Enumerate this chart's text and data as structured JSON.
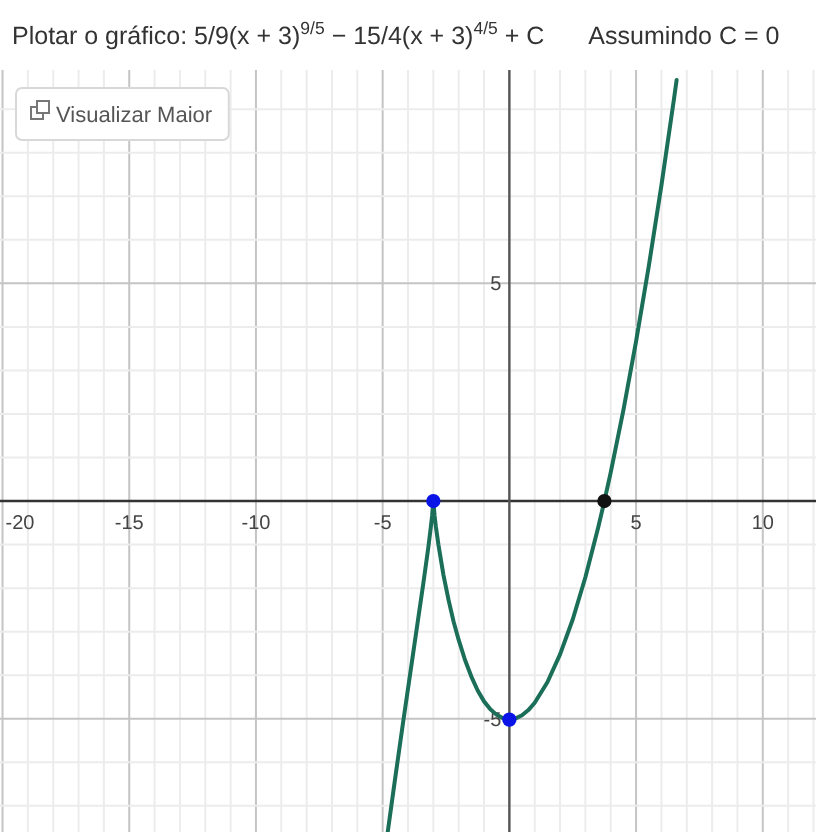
{
  "chart_data": {
    "type": "line",
    "title": "Plotar o gráfico: 5/9(x + 3)$^{9/5}$ − 15/4(x + 3)$^{4/5}$ + C",
    "subtitle": "Assumindo C = 0",
    "annotations": [
      "Visualizar Maior"
    ],
    "xlim": [
      -20.1,
      12.1
    ],
    "ylim": [
      -7.6,
      9.9
    ],
    "xticks": [
      -20,
      {
        "value": -19,
        "label": null
      },
      {
        "value": -18,
        "label": null
      },
      {
        "value": -17,
        "label": null
      },
      {
        "value": -16,
        "label": null
      },
      -15,
      {
        "value": -14,
        "label": null
      },
      {
        "value": -13,
        "label": null
      },
      {
        "value": -12,
        "label": null
      },
      {
        "value": -11,
        "label": null
      },
      -10,
      {
        "value": -9,
        "label": null
      },
      {
        "value": -8,
        "label": null
      },
      {
        "value": -7,
        "label": null
      },
      {
        "value": -6,
        "label": null
      },
      -5,
      {
        "value": -4,
        "label": null
      },
      {
        "value": -3,
        "label": null
      },
      {
        "value": -2,
        "label": null
      },
      {
        "value": -1,
        "label": null
      },
      {
        "value": 0,
        "label": null
      },
      {
        "value": 1,
        "label": null
      },
      {
        "value": 2,
        "label": null
      },
      {
        "value": 3,
        "label": null
      },
      {
        "value": 4,
        "label": null
      },
      5,
      {
        "value": 6,
        "label": null
      },
      {
        "value": 7,
        "label": null
      },
      {
        "value": 8,
        "label": null
      },
      {
        "value": 9,
        "label": null
      },
      10,
      {
        "value": 11,
        "label": null
      },
      {
        "value": 12,
        "label": null
      }
    ],
    "yticks": [
      {
        "value": -7,
        "label": null
      },
      {
        "value": -6,
        "label": null
      },
      -5,
      {
        "value": -4,
        "label": null
      },
      {
        "value": -3,
        "label": null
      },
      {
        "value": -2,
        "label": null
      },
      {
        "value": -1,
        "label": null
      },
      {
        "value": 0,
        "label": null
      },
      {
        "value": 1,
        "label": null
      },
      {
        "value": 2,
        "label": null
      },
      {
        "value": 3,
        "label": null
      },
      {
        "value": 4,
        "label": null
      },
      5,
      {
        "value": 6,
        "label": null
      },
      {
        "value": 7,
        "label": null
      },
      {
        "value": 8,
        "label": null
      },
      {
        "value": 9,
        "label": null
      }
    ],
    "grid": true,
    "series": [
      {
        "color": "#1b6e58",
        "x": [
          -4.8,
          -4.5,
          -4.2,
          -4,
          -3.8,
          -3.6,
          -3.4,
          -3.2,
          -3.1,
          -3.05,
          -3,
          -2.95,
          -2.9,
          -2.8,
          -2.6,
          -2.4,
          -2.2,
          -2,
          -1.75,
          -1.5,
          -1.25,
          -1,
          -0.75,
          -0.5,
          -0.25,
          0,
          0.25,
          0.5,
          0.75,
          1,
          1.5,
          2,
          2.5,
          3,
          3.5,
          3.75,
          4,
          4.5,
          5,
          5.5,
          6,
          6.5,
          6.6
        ],
        "values": [
          -7.6,
          -6.34,
          -5.11,
          -4.31,
          -3.51,
          -2.71,
          -1.91,
          -1.07,
          -0.6,
          -0.34,
          0,
          -0.34,
          -0.59,
          -1.0,
          -1.7,
          -2.27,
          -2.77,
          -3.19,
          -3.65,
          -4.03,
          -4.35,
          -4.6,
          -4.78,
          -4.91,
          -4.99,
          -5.02,
          -4.99,
          -4.92,
          -4.8,
          -4.63,
          -4.16,
          -3.52,
          -2.72,
          -1.75,
          -0.62,
          0,
          0.66,
          2.09,
          3.67,
          5.39,
          7.25,
          9.25,
          9.67
        ]
      },
      {
        "type": "scatter",
        "color": "#0a14e6",
        "marker": "circle",
        "x": [
          -3,
          0
        ],
        "values": [
          0,
          -5.02
        ]
      },
      {
        "type": "scatter",
        "color": "#111111",
        "marker": "circle",
        "x": [
          3.75
        ],
        "values": [
          0
        ]
      }
    ]
  }
}
